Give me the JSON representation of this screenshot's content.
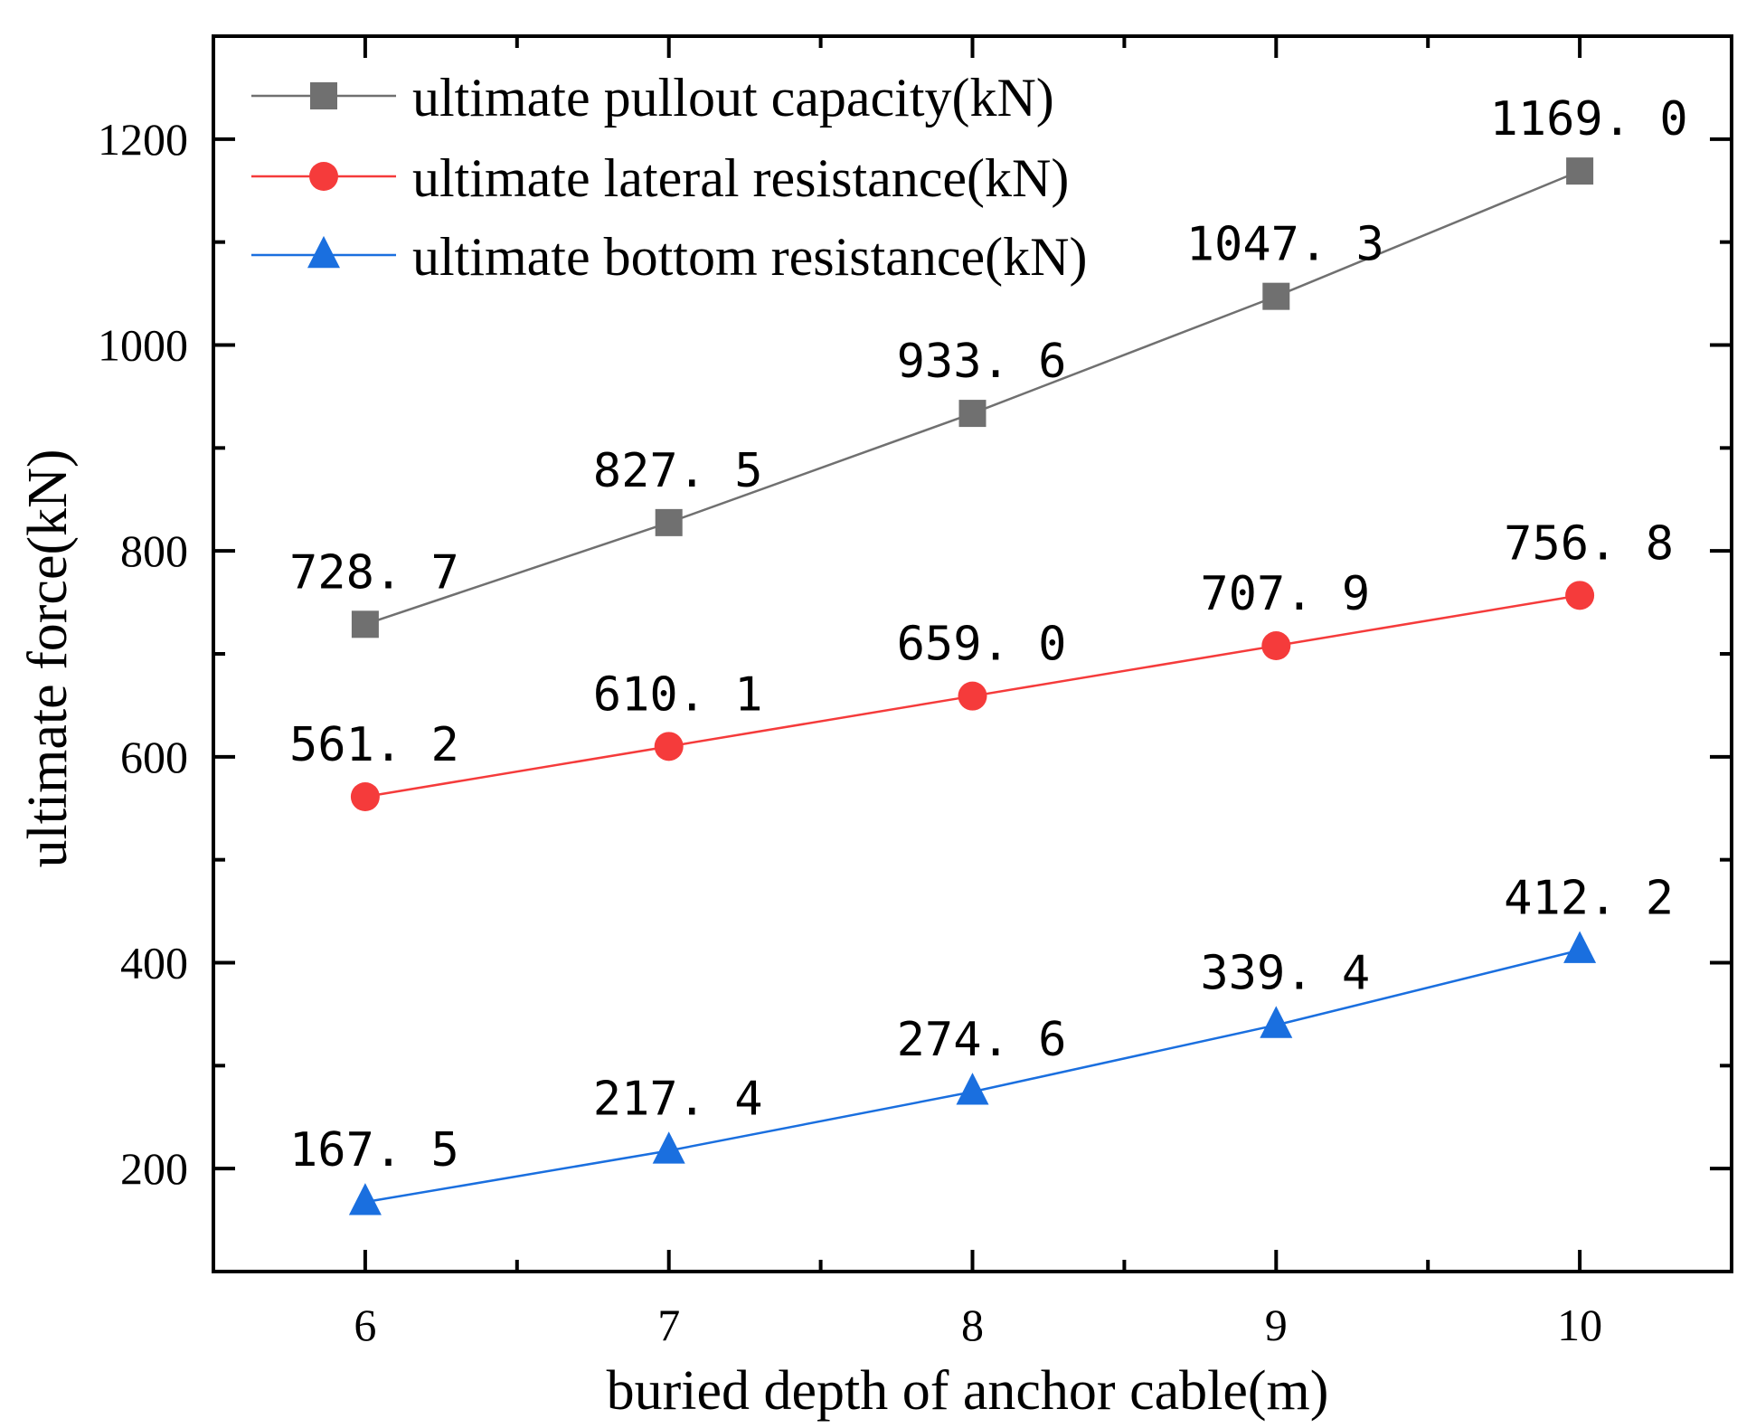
{
  "chart_data": {
    "type": "line",
    "xlabel": "buried depth of anchor cable(m)",
    "ylabel": "ultimate force(kN)",
    "xlim": [
      5.5,
      10.5
    ],
    "ylim": [
      100,
      1300
    ],
    "x": [
      6,
      7,
      8,
      9,
      10
    ],
    "x_ticks": [
      6,
      7,
      8,
      9,
      10
    ],
    "x_tick_labels": [
      "6",
      "7",
      "8",
      "9",
      "10"
    ],
    "x_minor_ticks": [
      6.5,
      7.5,
      8.5,
      9.5
    ],
    "y_ticks": [
      200,
      400,
      600,
      800,
      1000,
      1200
    ],
    "y_tick_labels": [
      "200",
      "400",
      "600",
      "800",
      "1000",
      "1200"
    ],
    "y_minor_ticks": [
      300,
      500,
      700,
      900,
      1100
    ],
    "grid": false,
    "legend_position": "top-left",
    "series": [
      {
        "name": "ultimate pullout capacity(kN)",
        "marker": "square",
        "color": "#707070",
        "values": [
          728.7,
          827.5,
          933.6,
          1047.3,
          1169.0
        ],
        "labels": [
          "728. 7",
          "827. 5",
          "933. 6",
          "1047. 3",
          "1169. 0"
        ]
      },
      {
        "name": "ultimate lateral resistance(kN)",
        "marker": "circle",
        "color": "#f53b3b",
        "values": [
          561.2,
          610.1,
          659.0,
          707.9,
          756.8
        ],
        "labels": [
          "561. 2",
          "610. 1",
          "659. 0",
          "707. 9",
          "756. 8"
        ]
      },
      {
        "name": "ultimate bottom resistance(kN)",
        "marker": "triangle",
        "color": "#1a6fdf",
        "values": [
          167.5,
          217.4,
          274.6,
          339.4,
          412.2
        ],
        "labels": [
          "167. 5",
          "217. 4",
          "274. 6",
          "339. 4",
          "412. 2"
        ]
      }
    ]
  }
}
